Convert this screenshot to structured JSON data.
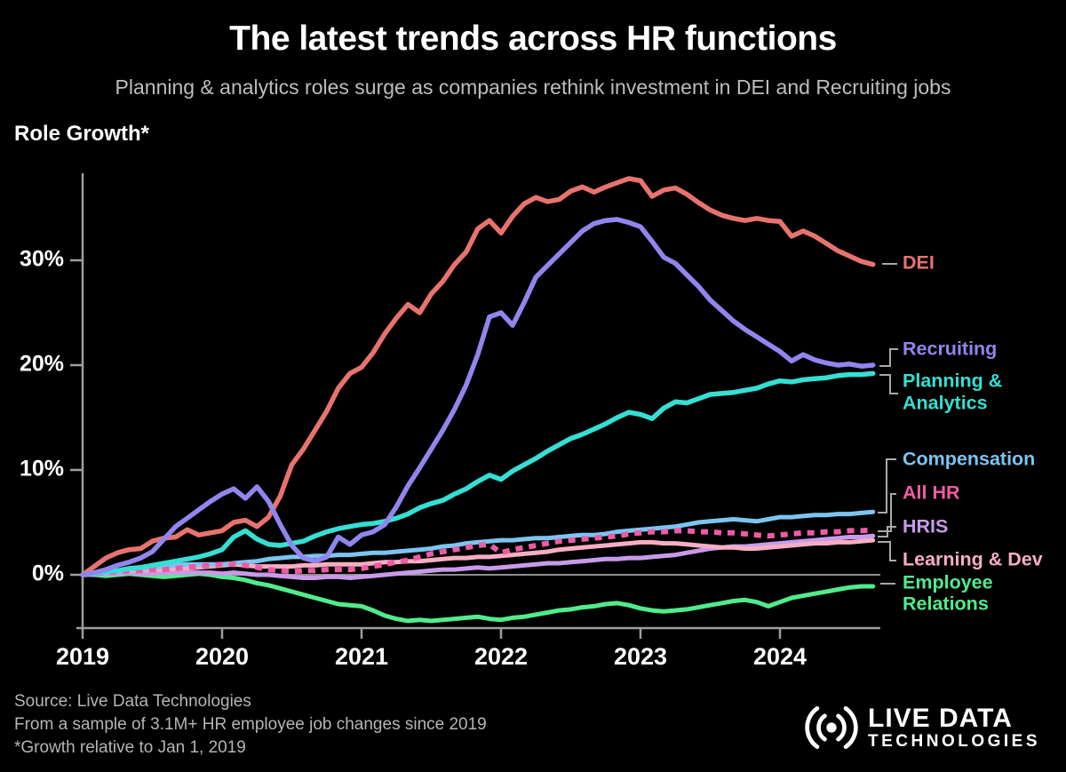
{
  "header": {
    "title": "The latest trends across HR functions",
    "subtitle": "Planning & analytics roles surge as companies rethink investment in DEI and Recruiting jobs"
  },
  "chart": {
    "y_axis_label": "Role Growth*"
  },
  "chart_data": {
    "type": "line",
    "title": "The latest trends across HR functions",
    "ylabel": "Role Growth*",
    "x_unit": "monthly points starting Jan 2019",
    "x_ticks": [
      {
        "value": 2019,
        "label": "2019"
      },
      {
        "value": 2020,
        "label": "2020"
      },
      {
        "value": 2021,
        "label": "2021"
      },
      {
        "value": 2022,
        "label": "2022"
      },
      {
        "value": 2023,
        "label": "2023"
      },
      {
        "value": 2024,
        "label": "2024"
      }
    ],
    "y_ticks": [
      {
        "value": 0,
        "label": "0%"
      },
      {
        "value": 10,
        "label": "10%"
      },
      {
        "value": 20,
        "label": "20%"
      },
      {
        "value": 30,
        "label": "30%"
      }
    ],
    "ylim": [
      -5.1,
      38.8
    ],
    "grid": "zero-line-only",
    "legend_position": "right",
    "series": [
      {
        "id": "er",
        "name": "Employee Relations",
        "legend_label_lines": [
          "Employee",
          "Relations"
        ],
        "color": "#50ec8c",
        "dashed": false,
        "values": [
          0,
          0,
          -0.1,
          0,
          0.1,
          0,
          -0.1,
          -0.2,
          -0.1,
          0,
          0.1,
          0,
          -0.2,
          -0.3,
          -0.5,
          -0.8,
          -1.0,
          -1.3,
          -1.6,
          -1.9,
          -2.2,
          -2.5,
          -2.8,
          -2.9,
          -3.0,
          -3.4,
          -3.9,
          -4.2,
          -4.4,
          -4.3,
          -4.4,
          -4.3,
          -4.2,
          -4.1,
          -4.0,
          -4.2,
          -4.3,
          -4.1,
          -4.0,
          -3.8,
          -3.6,
          -3.4,
          -3.3,
          -3.1,
          -3.0,
          -2.8,
          -2.7,
          -2.9,
          -3.2,
          -3.4,
          -3.5,
          -3.4,
          -3.3,
          -3.1,
          -2.9,
          -2.7,
          -2.5,
          -2.4,
          -2.6,
          -3.0,
          -2.6,
          -2.2,
          -2.0,
          -1.8,
          -1.6,
          -1.4,
          -1.2,
          -1.1,
          -1.1
        ]
      },
      {
        "id": "hris",
        "name": "HRIS",
        "legend_label_lines": [
          "HRIS"
        ],
        "color": "#c89bea",
        "dashed": false,
        "values": [
          0,
          0,
          0.1,
          0.1,
          0.2,
          0.1,
          0.1,
          0.2,
          0.2,
          0.2,
          0.2,
          0.2,
          0.1,
          0.2,
          0.1,
          0,
          0,
          -0.1,
          -0.2,
          -0.3,
          -0.3,
          -0.2,
          -0.2,
          -0.3,
          -0.2,
          -0.1,
          0,
          0.1,
          0.2,
          0.3,
          0.4,
          0.5,
          0.5,
          0.6,
          0.7,
          0.6,
          0.7,
          0.8,
          0.9,
          1.0,
          1.1,
          1.1,
          1.2,
          1.3,
          1.4,
          1.5,
          1.5,
          1.6,
          1.6,
          1.7,
          1.8,
          1.9,
          2.1,
          2.3,
          2.5,
          2.6,
          2.7,
          2.7,
          2.8,
          2.9,
          3.0,
          3.1,
          3.2,
          3.3,
          3.4,
          3.5,
          3.6,
          3.6,
          3.7
        ]
      },
      {
        "id": "ld",
        "name": "Learning & Dev",
        "legend_label_lines": [
          "Learning & Dev"
        ],
        "color": "#f6aec3",
        "dashed": false,
        "values": [
          0,
          0.1,
          0.2,
          0.3,
          0.4,
          0.4,
          0.5,
          0.5,
          0.6,
          0.6,
          0.7,
          0.8,
          0.9,
          1.0,
          0.9,
          0.8,
          0.8,
          0.8,
          0.8,
          0.9,
          0.9,
          1.0,
          1.0,
          1.0,
          1.0,
          1.1,
          1.2,
          1.2,
          1.3,
          1.3,
          1.4,
          1.5,
          1.6,
          1.6,
          1.7,
          1.7,
          1.8,
          1.9,
          2.0,
          2.1,
          2.2,
          2.4,
          2.5,
          2.6,
          2.7,
          2.8,
          2.9,
          3.0,
          3.1,
          3.1,
          3.0,
          3.0,
          2.9,
          2.8,
          2.7,
          2.6,
          2.6,
          2.5,
          2.5,
          2.6,
          2.7,
          2.8,
          2.9,
          3.0,
          3.0,
          3.1,
          3.1,
          3.2,
          3.3
        ]
      },
      {
        "id": "compensation",
        "name": "Compensation",
        "legend_label_lines": [
          "Compensation"
        ],
        "color": "#7cc4f2",
        "dashed": false,
        "values": [
          0,
          0.1,
          0.2,
          0.3,
          0.5,
          0.6,
          0.7,
          0.8,
          0.9,
          1.0,
          1.0,
          1.0,
          1.0,
          1.1,
          1.2,
          1.3,
          1.5,
          1.6,
          1.7,
          1.7,
          1.8,
          1.8,
          1.9,
          1.9,
          2.0,
          2.1,
          2.1,
          2.2,
          2.3,
          2.4,
          2.5,
          2.7,
          2.8,
          3.0,
          3.1,
          3.2,
          3.3,
          3.3,
          3.4,
          3.5,
          3.5,
          3.6,
          3.7,
          3.8,
          3.8,
          3.9,
          4.1,
          4.2,
          4.3,
          4.4,
          4.5,
          4.6,
          4.8,
          5.0,
          5.1,
          5.2,
          5.3,
          5.2,
          5.1,
          5.3,
          5.5,
          5.5,
          5.6,
          5.7,
          5.7,
          5.8,
          5.8,
          5.9,
          6.0
        ]
      },
      {
        "id": "allhr",
        "name": "All HR",
        "legend_label_lines": [
          "All HR"
        ],
        "color": "#ee5ba5",
        "dashed": true,
        "values": [
          0,
          0.1,
          0.2,
          0.3,
          0.4,
          0.4,
          0.5,
          0.5,
          0.6,
          0.7,
          0.8,
          0.9,
          1.0,
          1.0,
          0.9,
          0.7,
          0.5,
          0.4,
          0.3,
          0.4,
          0.4,
          0.5,
          0.5,
          0.5,
          0.6,
          0.8,
          1.0,
          1.2,
          1.4,
          1.7,
          2.0,
          2.2,
          2.4,
          2.6,
          2.8,
          2.9,
          2.1,
          2.4,
          2.6,
          2.8,
          3.0,
          3.2,
          3.3,
          3.4,
          3.5,
          3.6,
          3.7,
          3.9,
          4.0,
          4.1,
          4.1,
          4.2,
          4.2,
          4.1,
          4.1,
          4.0,
          4.0,
          3.9,
          3.8,
          3.7,
          3.8,
          3.9,
          4.0,
          4.0,
          4.1,
          4.1,
          4.2,
          4.2,
          4.3
        ]
      },
      {
        "id": "planning",
        "name": "Planning & Analytics",
        "legend_label_lines": [
          "Planning &",
          "Analytics"
        ],
        "color": "#35dfd3",
        "dashed": false,
        "values": [
          0,
          0.1,
          0.3,
          0.4,
          0.6,
          0.7,
          0.9,
          1.1,
          1.3,
          1.5,
          1.7,
          2.0,
          2.4,
          3.6,
          4.2,
          3.4,
          2.9,
          2.8,
          3.0,
          3.2,
          3.7,
          4.1,
          4.4,
          4.6,
          4.8,
          4.9,
          5.1,
          5.4,
          5.8,
          6.4,
          6.8,
          7.1,
          7.7,
          8.2,
          8.9,
          9.5,
          9.1,
          9.9,
          10.5,
          11.1,
          11.8,
          12.4,
          13.0,
          13.4,
          13.9,
          14.4,
          15.0,
          15.5,
          15.3,
          14.9,
          15.9,
          16.5,
          16.4,
          16.8,
          17.2,
          17.3,
          17.4,
          17.6,
          17.8,
          18.2,
          18.5,
          18.4,
          18.6,
          18.7,
          18.8,
          19.0,
          19.1,
          19.1,
          19.2
        ]
      },
      {
        "id": "dei",
        "name": "DEI",
        "legend_label_lines": [
          "DEI"
        ],
        "color": "#e8736e",
        "dashed": false,
        "values": [
          0,
          0.8,
          1.6,
          2.1,
          2.4,
          2.5,
          3.2,
          3.5,
          3.6,
          4.3,
          3.8,
          4.0,
          4.2,
          5.0,
          5.2,
          4.6,
          5.5,
          7.5,
          10.5,
          12.0,
          13.8,
          15.6,
          17.8,
          19.2,
          19.8,
          21.2,
          23.0,
          24.5,
          25.8,
          25.0,
          26.8,
          28.0,
          29.6,
          30.8,
          33.0,
          33.8,
          32.6,
          34.2,
          35.4,
          36.0,
          35.6,
          35.8,
          36.6,
          37.0,
          36.5,
          37.0,
          37.4,
          37.8,
          37.6,
          36.1,
          36.7,
          36.9,
          36.3,
          35.5,
          34.8,
          34.3,
          34.0,
          33.8,
          34.0,
          33.8,
          33.7,
          32.3,
          32.8,
          32.3,
          31.6,
          30.9,
          30.4,
          29.9,
          29.6
        ]
      },
      {
        "id": "recruiting",
        "name": "Recruiting",
        "legend_label_lines": [
          "Recruiting"
        ],
        "color": "#9185ee",
        "dashed": false,
        "values": [
          0,
          0.2,
          0.5,
          0.9,
          1.2,
          1.6,
          2.2,
          3.4,
          4.6,
          5.4,
          6.2,
          7.0,
          7.7,
          8.2,
          7.3,
          8.4,
          7.0,
          4.8,
          2.8,
          1.6,
          1.3,
          1.7,
          3.6,
          2.9,
          3.8,
          4.1,
          4.8,
          6.5,
          8.5,
          10.2,
          12.0,
          13.8,
          15.8,
          18.1,
          21.0,
          24.6,
          25.0,
          23.8,
          26.0,
          28.4,
          29.5,
          30.6,
          31.7,
          32.8,
          33.5,
          33.8,
          33.9,
          33.6,
          33.2,
          31.8,
          30.3,
          29.7,
          28.6,
          27.5,
          26.2,
          25.2,
          24.2,
          23.4,
          22.7,
          22.0,
          21.3,
          20.4,
          21.0,
          20.5,
          20.2,
          20.0,
          20.1,
          19.9,
          20.0
        ]
      }
    ]
  },
  "footer": {
    "source_lines": [
      "Source: Live Data Technologies",
      "From a sample of 3.1M+ HR employee job changes since 2019",
      "*Growth relative to Jan 1, 2019"
    ]
  },
  "logo": {
    "icon": "radio-waves-icon",
    "line1": "LIVE DATA",
    "line2": "TECHNOLOGIES"
  }
}
